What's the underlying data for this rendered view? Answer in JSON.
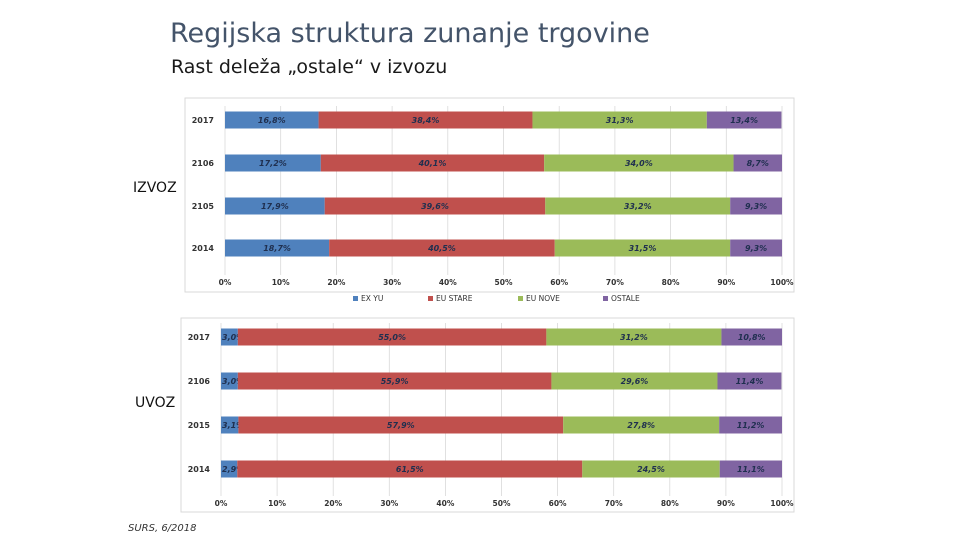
{
  "header": {
    "title": "Regijska struktura zunanje trgovine",
    "subtitle": "Rast deleža „ostale“ v izvozu"
  },
  "labels": {
    "izvoz": "IZVOZ",
    "uvoz": "UVOZ"
  },
  "footer": {
    "source": "SURS, 6/2018"
  },
  "colors": {
    "EX YU": "#4f81bd",
    "EU STARE": "#c0504d",
    "EU NOVE": "#9bbb59",
    "OSTALE": "#8064a2"
  },
  "chart_data": [
    {
      "type": "bar",
      "stacked": true,
      "orientation": "horizontal",
      "percent": true,
      "categories": [
        "2017",
        "2106",
        "2105",
        "2014"
      ],
      "series": [
        {
          "name": "EX YU",
          "values": [
            16.8,
            17.2,
            17.9,
            18.7
          ],
          "labels": [
            "16,8%",
            "17,2%",
            "17,9%",
            "18,7%"
          ]
        },
        {
          "name": "EU STARE",
          "values": [
            38.4,
            40.1,
            39.6,
            40.5
          ],
          "labels": [
            "38,4%",
            "40,1%",
            "39,6%",
            "40,5%"
          ]
        },
        {
          "name": "EU NOVE",
          "values": [
            31.3,
            34.0,
            33.2,
            31.5
          ],
          "labels": [
            "31,3%",
            "34,0%",
            "33,2%",
            "31,5%"
          ]
        },
        {
          "name": "OSTALE",
          "values": [
            13.4,
            8.7,
            9.3,
            9.3
          ],
          "labels": [
            "13,4%",
            "8,7%",
            "9,3%",
            "9,3%"
          ]
        }
      ],
      "xlim": [
        0,
        100
      ],
      "xticks": [
        "0%",
        "10%",
        "20%",
        "30%",
        "40%",
        "50%",
        "60%",
        "70%",
        "80%",
        "90%",
        "100%"
      ],
      "grid": true,
      "legend": "bottom"
    },
    {
      "type": "bar",
      "stacked": true,
      "orientation": "horizontal",
      "percent": true,
      "categories": [
        "2017",
        "2106",
        "2015",
        "2014"
      ],
      "series": [
        {
          "name": "EX YU",
          "values": [
            3.0,
            3.0,
            3.1,
            2.9
          ],
          "labels": [
            "3,0%",
            "3,0%",
            "3,1%",
            "2,9%"
          ]
        },
        {
          "name": "EU STARE",
          "values": [
            55.0,
            55.9,
            57.9,
            61.5
          ],
          "labels": [
            "55,0%",
            "55,9%",
            "57,9%",
            "61,5%"
          ]
        },
        {
          "name": "EU NOVE",
          "values": [
            31.2,
            29.6,
            27.8,
            24.5
          ],
          "labels": [
            "31,2%",
            "29,6%",
            "27,8%",
            "24,5%"
          ]
        },
        {
          "name": "OSTALE",
          "values": [
            10.8,
            11.4,
            11.2,
            11.1
          ],
          "labels": [
            "10,8%",
            "11,4%",
            "11,2%",
            "11,1%"
          ]
        }
      ],
      "xlim": [
        0,
        100
      ],
      "xticks": [
        "0%",
        "10%",
        "20%",
        "30%",
        "40%",
        "50%",
        "60%",
        "70%",
        "80%",
        "90%",
        "100%"
      ],
      "grid": true,
      "legend": "none"
    }
  ]
}
